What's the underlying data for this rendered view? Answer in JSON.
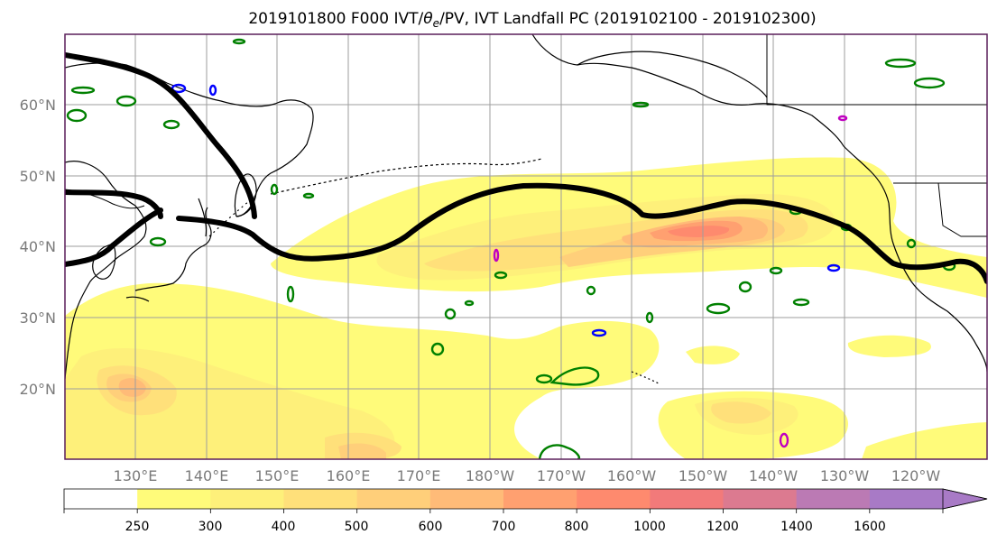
{
  "figure": {
    "title_prefix": "2019101800 F000 IVT/",
    "title_theta": "θ",
    "title_sub": "e",
    "title_suffix": "/PV, IVT Landfall PC (2019102100 - 2019102300)"
  },
  "map": {
    "lat_labels": [
      "60°N",
      "50°N",
      "40°N",
      "30°N",
      "20°N"
    ],
    "lon_labels": [
      "130°E",
      "140°E",
      "150°E",
      "160°E",
      "170°E",
      "180°W",
      "170°W",
      "160°W",
      "150°W",
      "140°W",
      "130°W",
      "120°W"
    ],
    "colors": {
      "coast": "#000000",
      "grid": "#9e9e9e",
      "theta_contour": "#008000",
      "pv_contour": "#0000ff",
      "magenta_contour": "#c000c0",
      "ivt_pc_line": "#000000",
      "frame": "#5a1f5a"
    }
  },
  "colorbar": {
    "levels": [
      "250",
      "300",
      "400",
      "500",
      "600",
      "700",
      "800",
      "1000",
      "1200",
      "1400",
      "1600"
    ],
    "colors": [
      "#ffffff",
      "#fffb7a",
      "#fef07a",
      "#ffe07a",
      "#ffcf7a",
      "#ffbb78",
      "#ffa070",
      "#fe8a6e",
      "#f27a7a",
      "#dc7a90",
      "#bb7ab4",
      "#a87ac6"
    ]
  }
}
